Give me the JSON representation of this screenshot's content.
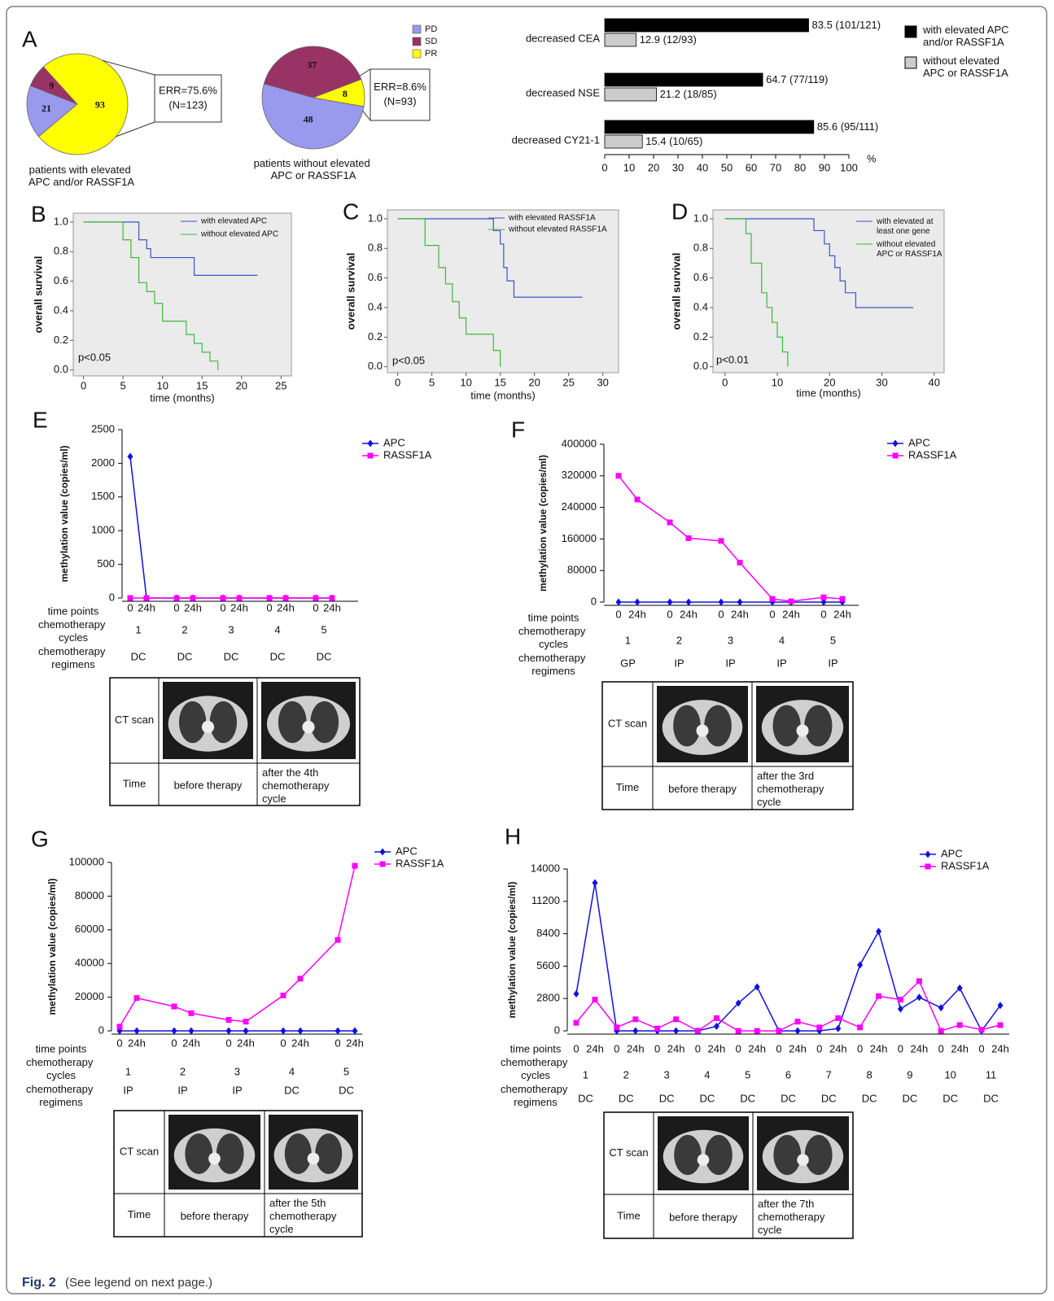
{
  "caption": {
    "label": "Fig. 2",
    "text": "(See legend on next page.)"
  },
  "chart_data": [
    {
      "type": "pie",
      "panel": "A",
      "categories": [
        "PD",
        "SD",
        "PR"
      ],
      "colors": [
        "#9999ee",
        "#993366",
        "#ffff00"
      ],
      "values": [
        21,
        9,
        93
      ],
      "annotation": [
        "ERR=75.6%",
        "(N=123)"
      ],
      "caption": "patients with elevated APC and/or RASSF1A"
    },
    {
      "type": "pie",
      "categories": [
        "PD",
        "SD",
        "PR"
      ],
      "colors": [
        "#9999ee",
        "#993366",
        "#ffff00"
      ],
      "values": [
        48,
        37,
        8
      ],
      "annotation": [
        "ERR=8.6%",
        "(N=93)"
      ],
      "caption": "patients without elevated APC or RASSF1A",
      "legend": true
    },
    {
      "type": "hbar",
      "categories": [
        "decreased CEA",
        "decreased NSE",
        "decreased CY21-1"
      ],
      "series": [
        {
          "name": "with elevated APC and/or RASSF1A",
          "color": "#000000",
          "values": [
            83.5,
            64.7,
            85.6
          ],
          "value_labels": [
            "83.5 (101/121)",
            "64.7 (77/119)",
            "85.6 (95/111)"
          ]
        },
        {
          "name": "without elevated APC or RASSF1A",
          "color": "#cccccc",
          "values": [
            12.9,
            21.2,
            15.4
          ],
          "value_labels": [
            "12.9 (12/93)",
            "21.2 (18/85)",
            "15.4 (10/65)"
          ]
        }
      ],
      "xlim": [
        0,
        100
      ],
      "xticks": [
        0,
        10,
        20,
        30,
        40,
        50,
        60,
        70,
        80,
        90,
        100
      ],
      "x_unit": "%",
      "legend": true
    },
    {
      "type": "survival",
      "panel": "B",
      "x_label": "time (months)",
      "y_label": "overall survival",
      "annotation": "p<0.05",
      "xlim": [
        -1.3,
        26.3
      ],
      "xticks": [
        0,
        5,
        10,
        15,
        20,
        25
      ],
      "ylim": [
        -0.04,
        1.06
      ],
      "yticks": [
        {
          "value": 0,
          "label": "0.0"
        },
        0.2,
        0.4,
        0.6,
        0.8,
        {
          "value": 1,
          "label": "1.0"
        }
      ],
      "series": [
        {
          "name": "with elevated APC",
          "color": "#3b55c8",
          "x": [
            0,
            7,
            7,
            8,
            8,
            8.5,
            8.5,
            14,
            14,
            22
          ],
          "values": [
            1,
            1,
            0.88,
            0.88,
            0.82,
            0.82,
            0.76,
            0.76,
            0.64,
            0.64
          ]
        },
        {
          "name": "without elevated APC",
          "color": "#3cb93c",
          "x": [
            0,
            5,
            5,
            6,
            6,
            7,
            7,
            8,
            8,
            9,
            9,
            10,
            10,
            13,
            13,
            14,
            14,
            15,
            15,
            16,
            16,
            17,
            17
          ],
          "values": [
            1,
            1,
            0.88,
            0.88,
            0.76,
            0.76,
            0.59,
            0.59,
            0.53,
            0.53,
            0.45,
            0.45,
            0.33,
            0.33,
            0.24,
            0.24,
            0.18,
            0.18,
            0.12,
            0.12,
            0.06,
            0.06,
            0
          ]
        }
      ]
    },
    {
      "type": "survival",
      "panel": "C",
      "x_label": "time (months)",
      "y_label": "overall survival",
      "annotation": "p<0.05",
      "xlim": [
        -1.5,
        32.3
      ],
      "xticks": [
        0,
        5,
        10,
        15,
        20,
        25,
        30
      ],
      "ylim": [
        -0.04,
        1.06
      ],
      "yticks": [
        {
          "value": 0,
          "label": "0.0"
        },
        0.2,
        0.4,
        0.6,
        0.8,
        {
          "value": 1,
          "label": "1.0"
        }
      ],
      "series": [
        {
          "name": "with elevated RASSF1A",
          "color": "#3b55c8",
          "x": [
            0,
            14,
            14,
            15,
            15,
            15.5,
            15.5,
            16,
            16,
            17,
            17,
            27
          ],
          "values": [
            1,
            1,
            0.92,
            0.92,
            0.83,
            0.83,
            0.67,
            0.67,
            0.58,
            0.58,
            0.47,
            0.47
          ]
        },
        {
          "name": "without elevated RASSF1A",
          "color": "#3cb93c",
          "x": [
            0,
            4,
            4,
            6,
            6,
            7,
            7,
            8,
            8,
            9,
            9,
            10,
            10,
            14,
            14,
            15,
            15
          ],
          "values": [
            1,
            1,
            0.82,
            0.82,
            0.67,
            0.67,
            0.56,
            0.56,
            0.44,
            0.44,
            0.33,
            0.33,
            0.22,
            0.22,
            0.11,
            0.11,
            0
          ]
        }
      ]
    },
    {
      "type": "survival",
      "panel": "D",
      "x_label": "time (months)",
      "y_label": "overall survival",
      "annotation": "p<0.01",
      "xlim": [
        -2.3,
        41.9
      ],
      "xticks": [
        0,
        10,
        20,
        30,
        40
      ],
      "ylim": [
        -0.04,
        1.06
      ],
      "yticks": [
        {
          "value": 0,
          "label": "0.0"
        },
        0.2,
        0.4,
        0.6,
        0.8,
        {
          "value": 1,
          "label": "1.0"
        }
      ],
      "series": [
        {
          "name": "with elevated at least one gene",
          "color": "#3b55c8",
          "x": [
            0,
            17,
            17,
            19,
            19,
            20,
            20,
            21,
            21,
            22,
            22,
            23,
            23,
            25,
            25,
            36
          ],
          "values": [
            1,
            1,
            0.92,
            0.92,
            0.83,
            0.83,
            0.75,
            0.75,
            0.67,
            0.67,
            0.58,
            0.58,
            0.5,
            0.5,
            0.4,
            0.4
          ]
        },
        {
          "name": "without elevated APC or RASSF1A",
          "color": "#3cb93c",
          "x": [
            0,
            4,
            4,
            5,
            5,
            7,
            7,
            8,
            8,
            9,
            9,
            10,
            10,
            11,
            11,
            12,
            12
          ],
          "values": [
            1,
            1,
            0.9,
            0.9,
            0.7,
            0.7,
            0.5,
            0.5,
            0.4,
            0.4,
            0.3,
            0.3,
            0.2,
            0.2,
            0.1,
            0.1,
            0
          ]
        }
      ]
    },
    {
      "type": "line",
      "panel": "E",
      "y_label": "methylation value (copies/ml)",
      "row_labels": [
        "time points",
        "chemotherapy cycles",
        "chemotherapy regimens"
      ],
      "categories": [
        "0",
        "24h",
        "0",
        "24h",
        "0",
        "24h",
        "0",
        "24h",
        "0",
        "24h"
      ],
      "cycles": [
        "1",
        "2",
        "3",
        "4",
        "5"
      ],
      "regimens": [
        "DC",
        "DC",
        "DC",
        "DC",
        "DC"
      ],
      "ylim": [
        0,
        2500
      ],
      "yticks": [
        0,
        500,
        1000,
        1500,
        2000,
        2500
      ],
      "series": [
        {
          "name": "APC",
          "color": "#1010e0",
          "marker": "diamond",
          "values": [
            2100,
            0,
            0,
            0,
            0,
            0,
            0,
            0,
            0,
            0
          ]
        },
        {
          "name": "RASSF1A",
          "color": "#ff00ff",
          "marker": "square",
          "values": [
            0,
            0,
            0,
            0,
            0,
            0,
            0,
            0,
            0,
            0
          ]
        }
      ],
      "ct_table": {
        "image_label": "CT scan",
        "time_label": "Time",
        "before": "before therapy",
        "after": "after the 4th chemotherapy cycle"
      }
    },
    {
      "type": "line",
      "panel": "F",
      "y_label": "methylation value (copies/ml)",
      "row_labels": [
        "time points",
        "chemotherapy cycles",
        "chemotherapy regimens"
      ],
      "categories": [
        "0",
        "24h",
        "0",
        "24h",
        "0",
        "24h",
        "0",
        "24h",
        "0",
        "24h"
      ],
      "cycles": [
        "1",
        "2",
        "3",
        "4",
        "5"
      ],
      "regimens": [
        "GP",
        "IP",
        "IP",
        "IP",
        "IP"
      ],
      "ylim": [
        0,
        400000
      ],
      "yticks": [
        0,
        80000,
        160000,
        240000,
        320000,
        400000
      ],
      "series": [
        {
          "name": "APC",
          "color": "#1010e0",
          "marker": "diamond",
          "values": [
            0,
            0,
            0,
            0,
            0,
            0,
            0,
            0,
            0,
            0
          ]
        },
        {
          "name": "RASSF1A",
          "color": "#ff00ff",
          "marker": "square",
          "values": [
            320000,
            260000,
            202000,
            162000,
            155000,
            100000,
            8000,
            2000,
            12000,
            8000
          ]
        }
      ],
      "ct_table": {
        "image_label": "CT scan",
        "time_label": "Time",
        "before": "before therapy",
        "after": "after the 3rd chemotherapy cycle"
      }
    },
    {
      "type": "line",
      "panel": "G",
      "y_label": "methylation value (copies/ml)",
      "row_labels": [
        "time points",
        "chemotherapy cycles",
        "chemotherapy regimens"
      ],
      "categories": [
        "0",
        "24h",
        "0",
        "24h",
        "0",
        "24h",
        "0",
        "24h",
        "0",
        "24h"
      ],
      "cycles": [
        "1",
        "2",
        "3",
        "4",
        "5"
      ],
      "regimens": [
        "IP",
        "IP",
        "IP",
        "DC",
        "DC"
      ],
      "ylim": [
        0,
        100000
      ],
      "yticks": [
        0,
        20000,
        40000,
        60000,
        80000,
        100000
      ],
      "series": [
        {
          "name": "APC",
          "color": "#1010e0",
          "marker": "diamond",
          "values": [
            0,
            0,
            0,
            0,
            0,
            0,
            0,
            0,
            0,
            0
          ]
        },
        {
          "name": "RASSF1A",
          "color": "#ff00ff",
          "marker": "square",
          "values": [
            2500,
            19500,
            14500,
            10500,
            6500,
            5500,
            21000,
            31000,
            54000,
            98000
          ]
        }
      ],
      "ct_table": {
        "image_label": "CT scan",
        "time_label": "Time",
        "before": "before therapy",
        "after": "after the 5th chemotherapy cycle"
      }
    },
    {
      "type": "line",
      "panel": "H",
      "y_label": "methylation value (copies/ml)",
      "row_labels": [
        "time points",
        "chemotherapy cycles",
        "chemotherapy regimens"
      ],
      "categories": [
        "0",
        "24h",
        "0",
        "24h",
        "0",
        "24h",
        "0",
        "24h",
        "0",
        "24h",
        "0",
        "24h",
        "0",
        "24h",
        "0",
        "24h",
        "0",
        "24h",
        "0",
        "24h",
        "0",
        "24h"
      ],
      "cycles": [
        "1",
        "2",
        "3",
        "4",
        "5",
        "6",
        "7",
        "8",
        "9",
        "10",
        "11"
      ],
      "regimens": [
        "DC",
        "DC",
        "DC",
        "DC",
        "DC",
        "DC",
        "DC",
        "DC",
        "DC",
        "DC",
        "DC"
      ],
      "ylim": [
        0,
        14000
      ],
      "yticks": [
        0,
        2800,
        5600,
        8400,
        11200,
        14000
      ],
      "series": [
        {
          "name": "APC",
          "color": "#1010e0",
          "marker": "diamond",
          "values": [
            3200,
            12800,
            0,
            0,
            0,
            0,
            0,
            400,
            2400,
            3800,
            0,
            0,
            0,
            200,
            5700,
            8600,
            1900,
            2900,
            2000,
            3700,
            0,
            2200
          ]
        },
        {
          "name": "RASSF1A",
          "color": "#ff00ff",
          "marker": "square",
          "values": [
            700,
            2700,
            300,
            1000,
            200,
            1000,
            0,
            1100,
            0,
            0,
            0,
            800,
            300,
            1100,
            300,
            3000,
            2700,
            4300,
            0,
            500,
            100,
            500
          ]
        }
      ],
      "ct_table": {
        "image_label": "CT scan",
        "time_label": "Time",
        "before": "before therapy",
        "after": "after the 7th chemotherapy cycle"
      }
    }
  ]
}
